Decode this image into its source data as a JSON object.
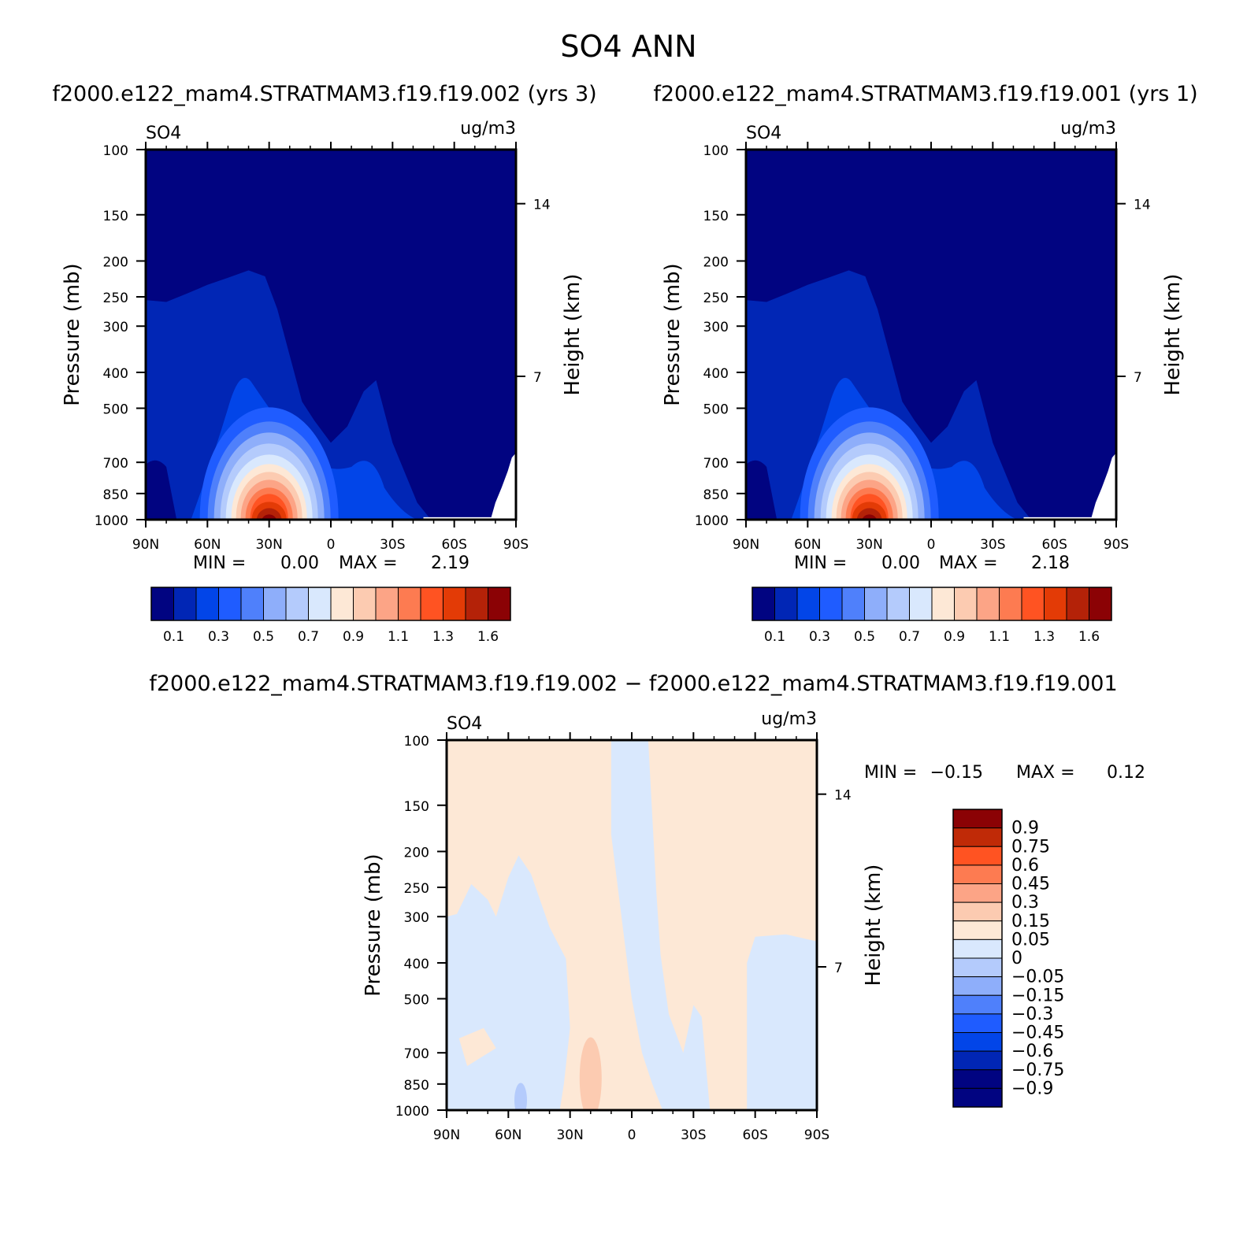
{
  "title": "SO4 ANN",
  "colors": {
    "seq": [
      "#010481",
      "#0126b5",
      "#0245e8",
      "#1f5cff",
      "#4f80fb",
      "#8eaefa",
      "#b4cbfc",
      "#d9e8fd",
      "#fde8d6",
      "#fccbb1",
      "#fca486",
      "#fd7b51",
      "#ff5322",
      "#e33b06",
      "#b42208",
      "#8b0205"
    ],
    "div": [
      "#010481",
      "#0126b5",
      "#0245e8",
      "#1f5cff",
      "#4f80fb",
      "#8eaefa",
      "#b4cbfc",
      "#d9e8fd",
      "#fde8d6",
      "#fccbb1",
      "#fca486",
      "#fd7b51",
      "#ff5322",
      "#c02a07",
      "#8b0205"
    ]
  },
  "chart_data": [
    {
      "id": "panel1",
      "type": "contour",
      "title": "f2000.e122_mam4.STRATMAM3.f19.f19.002 (yrs 3)",
      "variable": "SO4",
      "units": "ug/m3",
      "xlabel": "",
      "ylabel": "Pressure (mb)",
      "y2label": "Height (km)",
      "x_ticks": [
        "90N",
        "60N",
        "30N",
        "0",
        "30S",
        "60S",
        "90S"
      ],
      "y_ticks": [
        "100",
        "150",
        "200",
        "250",
        "300",
        "300",
        "400",
        "500",
        "700",
        "850",
        "1000"
      ],
      "y2_ticks": [
        "14",
        "7"
      ],
      "ylim": [
        1000,
        100
      ],
      "min_label": "MIN =",
      "min_value": "0.00",
      "max_label": "MAX =",
      "max_value": "2.19",
      "levels": [
        "0.1",
        "0.3",
        "0.5",
        "0.7",
        "0.9",
        "1.1",
        "1.3",
        "1.6"
      ],
      "max_center": {
        "lat": 30,
        "p": 950
      }
    },
    {
      "id": "panel2",
      "type": "contour",
      "title": "f2000.e122_mam4.STRATMAM3.f19.f19.001 (yrs 1)",
      "variable": "SO4",
      "units": "ug/m3",
      "xlabel": "",
      "ylabel": "Pressure (mb)",
      "y2label": "Height (km)",
      "x_ticks": [
        "90N",
        "60N",
        "30N",
        "0",
        "30S",
        "60S",
        "90S"
      ],
      "y_ticks": [
        "100",
        "150",
        "200",
        "250",
        "300",
        "300",
        "400",
        "500",
        "700",
        "850",
        "1000"
      ],
      "y2_ticks": [
        "14",
        "7"
      ],
      "ylim": [
        1000,
        100
      ],
      "min_label": "MIN =",
      "min_value": "0.00",
      "max_label": "MAX =",
      "max_value": "2.18",
      "levels": [
        "0.1",
        "0.3",
        "0.5",
        "0.7",
        "0.9",
        "1.1",
        "1.3",
        "1.6"
      ],
      "max_center": {
        "lat": 30,
        "p": 950
      }
    },
    {
      "id": "diff",
      "type": "contour",
      "title": "f2000.e122_mam4.STRATMAM3.f19.f19.002 − f2000.e122_mam4.STRATMAM3.f19.f19.001",
      "variable": "SO4",
      "units": "ug/m3",
      "xlabel": "",
      "ylabel": "Pressure (mb)",
      "y2label": "Height (km)",
      "x_ticks": [
        "90N",
        "60N",
        "30N",
        "0",
        "30S",
        "60S",
        "90S"
      ],
      "y_ticks": [
        "100",
        "150",
        "200",
        "250",
        "300",
        "400",
        "500",
        "700",
        "850",
        "1000"
      ],
      "y2_ticks": [
        "14",
        "7"
      ],
      "ylim": [
        1000,
        100
      ],
      "min_label": "MIN =",
      "min_value": "−0.15",
      "max_label": "MAX =",
      "max_value": "0.12",
      "levels": [
        "0.9",
        "0.75",
        "0.6",
        "0.45",
        "0.3",
        "0.15",
        "0.05",
        "0",
        "−0.05",
        "−0.15",
        "−0.3",
        "−0.45",
        "−0.6",
        "−0.75",
        "−0.9"
      ]
    }
  ]
}
